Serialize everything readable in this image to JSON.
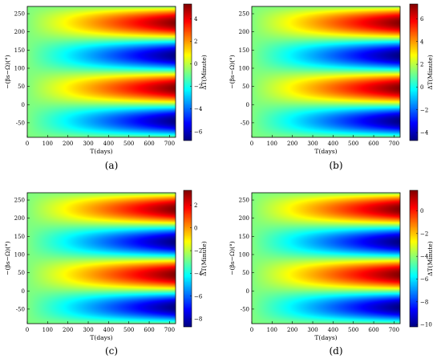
{
  "chart_data": [
    {
      "type": "heatmap",
      "panel_label": "(a)",
      "xlabel": "T(days)",
      "ylabel": "−(βs−Ω)(°)",
      "colorbar_label": "ΔT(Minute)",
      "xlim": [
        0,
        730
      ],
      "ylim": [
        -90,
        270
      ],
      "xticks": [
        0,
        100,
        200,
        300,
        400,
        500,
        600,
        700
      ],
      "yticks": [
        -50,
        0,
        50,
        100,
        150,
        200,
        250
      ],
      "clim": [
        -6.8,
        5.3
      ],
      "cticks": [
        -6,
        -4,
        -2,
        0,
        2,
        4
      ],
      "field": {
        "offset": -0.75,
        "amplitude": 6.0,
        "growth": "linear_in_T",
        "max_at_deg": [
          45,
          225
        ],
        "min_at_deg": [
          -45,
          135
        ]
      }
    },
    {
      "type": "heatmap",
      "panel_label": "(b)",
      "xlabel": "T(days)",
      "ylabel": "−(βs−Ω)(°)",
      "colorbar_label": "ΔT(Minute)",
      "xlim": [
        0,
        730
      ],
      "ylim": [
        -90,
        270
      ],
      "xticks": [
        0,
        100,
        200,
        300,
        400,
        500,
        600,
        700
      ],
      "yticks": [
        -50,
        0,
        50,
        100,
        150,
        200,
        250
      ],
      "clim": [
        -4.7,
        7.3
      ],
      "cticks": [
        -4,
        -2,
        0,
        2,
        4,
        6
      ],
      "field": {
        "offset": 1.3,
        "amplitude": 6.0,
        "growth": "linear_in_T",
        "max_at_deg": [
          45,
          225
        ],
        "min_at_deg": [
          -45,
          135
        ]
      }
    },
    {
      "type": "heatmap",
      "panel_label": "(c)",
      "xlabel": "T(days)",
      "ylabel": "−(βs−Ω)(°)",
      "colorbar_label": "ΔT(Minute)",
      "xlim": [
        0,
        730
      ],
      "ylim": [
        -90,
        270
      ],
      "xticks": [
        0,
        100,
        200,
        300,
        400,
        500,
        600,
        700
      ],
      "yticks": [
        -50,
        0,
        50,
        100,
        150,
        200,
        250
      ],
      "clim": [
        -8.7,
        3.3
      ],
      "cticks": [
        -8,
        -6,
        -4,
        -2,
        0,
        2
      ],
      "field": {
        "offset": -2.7,
        "amplitude": 6.0,
        "growth": "linear_in_T",
        "max_at_deg": [
          45,
          225
        ],
        "min_at_deg": [
          -45,
          135
        ]
      }
    },
    {
      "type": "heatmap",
      "panel_label": "(d)",
      "xlabel": "T(days)",
      "ylabel": "−(βs−Ω)(°)",
      "colorbar_label": "ΔT(Minute)",
      "xlim": [
        0,
        730
      ],
      "ylim": [
        -90,
        270
      ],
      "xticks": [
        0,
        100,
        200,
        300,
        400,
        500,
        600,
        700
      ],
      "yticks": [
        -50,
        0,
        50,
        100,
        150,
        200,
        250
      ],
      "clim": [
        -10.2,
        1.8
      ],
      "cticks": [
        -10,
        -8,
        -6,
        -4,
        -2,
        0
      ],
      "field": {
        "offset": -4.2,
        "amplitude": 6.0,
        "growth": "linear_in_T",
        "max_at_deg": [
          45,
          225
        ],
        "min_at_deg": [
          -45,
          135
        ]
      }
    }
  ]
}
